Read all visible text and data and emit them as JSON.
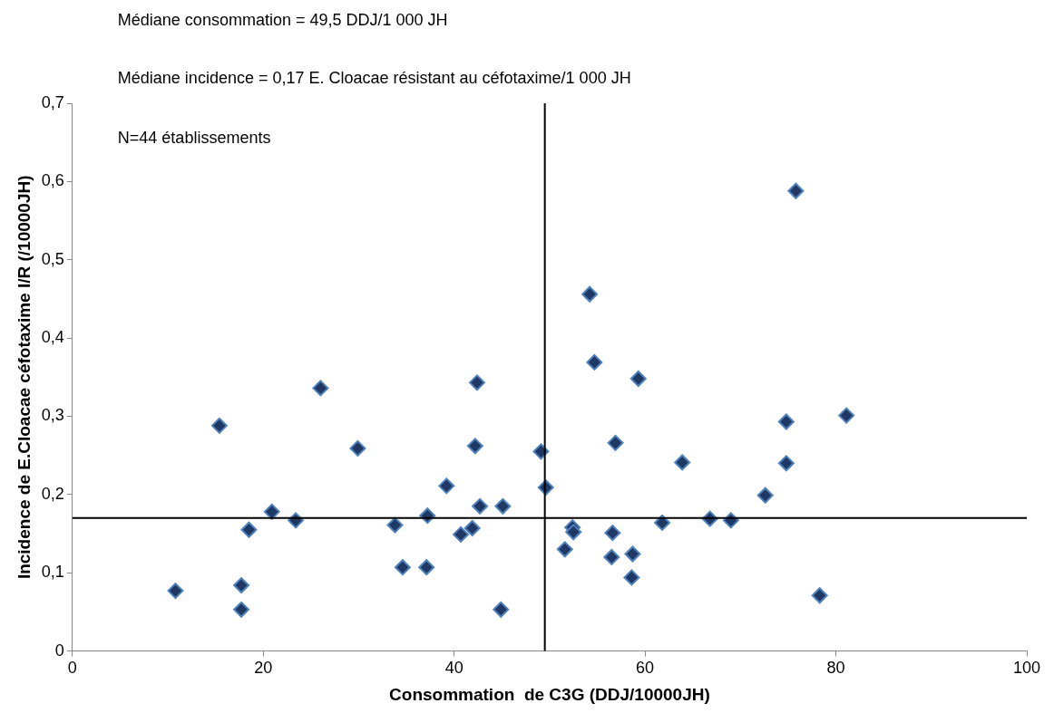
{
  "chart_data": {
    "type": "scatter",
    "xlabel": "Consommation  de C3G (DDJ/10000JH)",
    "ylabel": "Incidence de E.Cloacae céfotaxime I/R (/10000JH)",
    "annotations": [
      "Médiane consommation = 49,5 DDJ/1 000 JH",
      "Médiane incidence = 0,17 E. Cloacae résistant au céfotaxime/1 000 JH",
      "N=44 établissements"
    ],
    "xlim": [
      0,
      100
    ],
    "xticks": [
      0,
      20,
      40,
      60,
      80,
      100
    ],
    "ylim": [
      0,
      0.7
    ],
    "yticks": [
      {
        "value": 0,
        "label": "0"
      },
      {
        "value": 0.1,
        "label": "0,1"
      },
      {
        "value": 0.2,
        "label": "0,2"
      },
      {
        "value": 0.3,
        "label": "0,3"
      },
      {
        "value": 0.4,
        "label": "0,4"
      },
      {
        "value": 0.5,
        "label": "0,5"
      },
      {
        "value": 0.6,
        "label": "0,6"
      },
      {
        "value": 0.7,
        "label": "0,7"
      }
    ],
    "grid": false,
    "legend": false,
    "marker": "diamond",
    "ref_lines": [
      {
        "axis": "x",
        "value": 49.5,
        "color": "#000000"
      },
      {
        "axis": "y",
        "value": 0.17,
        "color": "#000000"
      }
    ],
    "series": [
      {
        "color": "#1f3864",
        "x": [
          10.8,
          15.4,
          17.7,
          17.7,
          18.5,
          20.9,
          23.4,
          26.0,
          29.9,
          33.8,
          34.6,
          37.1,
          37.2,
          39.2,
          40.7,
          41.9,
          42.2,
          42.4,
          42.7,
          44.9,
          45.1,
          49.1,
          49.6,
          51.6,
          52.4,
          52.5,
          54.2,
          54.7,
          56.6,
          56.5,
          56.9,
          58.6,
          58.7,
          59.3,
          61.8,
          63.9,
          66.8,
          69.0,
          72.6,
          74.8,
          74.8,
          75.8,
          78.3,
          81.1
        ],
        "values": [
          0.077,
          0.288,
          0.084,
          0.053,
          0.155,
          0.178,
          0.167,
          0.336,
          0.259,
          0.161,
          0.107,
          0.107,
          0.173,
          0.211,
          0.149,
          0.157,
          0.262,
          0.343,
          0.185,
          0.053,
          0.185,
          0.255,
          0.209,
          0.13,
          0.158,
          0.152,
          0.456,
          0.369,
          0.151,
          0.12,
          0.266,
          0.094,
          0.124,
          0.348,
          0.164,
          0.241,
          0.169,
          0.167,
          0.199,
          0.293,
          0.24,
          0.588,
          0.071,
          0.301
        ]
      }
    ]
  }
}
